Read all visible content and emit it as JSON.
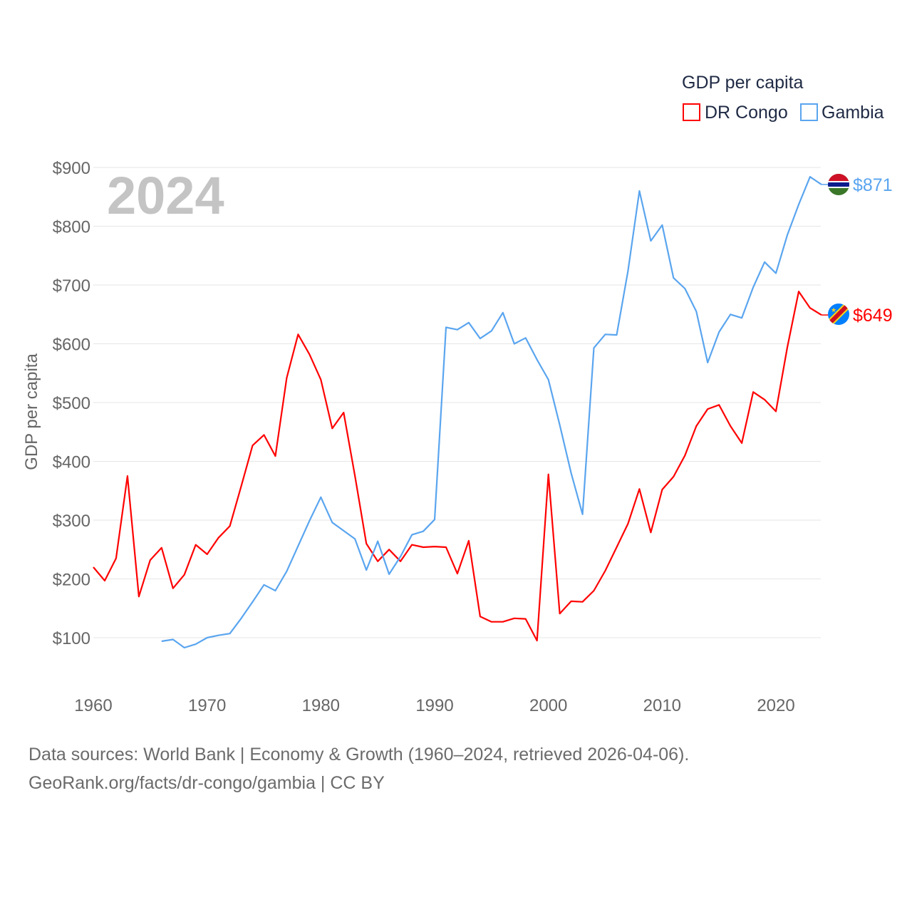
{
  "chart_data": {
    "type": "line",
    "title": "GDP per capita",
    "ylabel": "GDP per capita",
    "xlabel": "",
    "year_label": "2024",
    "ylim": [
      0,
      950
    ],
    "xlim": [
      1960,
      2024
    ],
    "y_ticks": [
      100,
      200,
      300,
      400,
      500,
      600,
      700,
      800,
      900
    ],
    "y_tick_labels": [
      "$100",
      "$200",
      "$300",
      "$400",
      "$500",
      "$600",
      "$700",
      "$800",
      "$900"
    ],
    "x_ticks": [
      1960,
      1970,
      1980,
      1990,
      2000,
      2010,
      2020
    ],
    "x_tick_labels": [
      "1960",
      "1970",
      "1980",
      "1990",
      "2000",
      "2010",
      "2020"
    ],
    "grid": true,
    "legend_position": "top-right",
    "series": [
      {
        "name": "DR Congo",
        "color": "#ff0000",
        "end_label": "$649",
        "flag": "dr-congo-flag",
        "start_year": 1960,
        "values": [
          220,
          197,
          235,
          375,
          170,
          232,
          253,
          184,
          207,
          258,
          242,
          270,
          290,
          358,
          427,
          445,
          409,
          542,
          616,
          582,
          539,
          456,
          483,
          375,
          260,
          230,
          250,
          230,
          258,
          254,
          255,
          254,
          209,
          265,
          136,
          127,
          127,
          133,
          132,
          95,
          378,
          141,
          162,
          161,
          180,
          214,
          254,
          294,
          353,
          279,
          352,
          374,
          410,
          460,
          489,
          496,
          460,
          431,
          518,
          505,
          485,
          594,
          689,
          661,
          649
        ]
      },
      {
        "name": "Gambia",
        "color": "#5aa5ef",
        "end_label": "$871",
        "flag": "gambia-flag",
        "start_year": 1966,
        "values": [
          94,
          97,
          83,
          89,
          100,
          104,
          107,
          133,
          161,
          190,
          180,
          213,
          256,
          299,
          339,
          296,
          282,
          268,
          215,
          264,
          208,
          238,
          275,
          281,
          301,
          628,
          624,
          636,
          609,
          622,
          653,
          600,
          610,
          573,
          539,
          462,
          380,
          310,
          593,
          616,
          615,
          724,
          860,
          775,
          802,
          712,
          694,
          655,
          568,
          620,
          650,
          644,
          696,
          739,
          720,
          785,
          837,
          884,
          871
        ]
      }
    ]
  },
  "footer": {
    "line1": "Data sources: World Bank | Economy & Growth (1960–2024, retrieved 2026-04-06).",
    "line2": "GeoRank.org/facts/dr-congo/gambia | CC BY"
  }
}
